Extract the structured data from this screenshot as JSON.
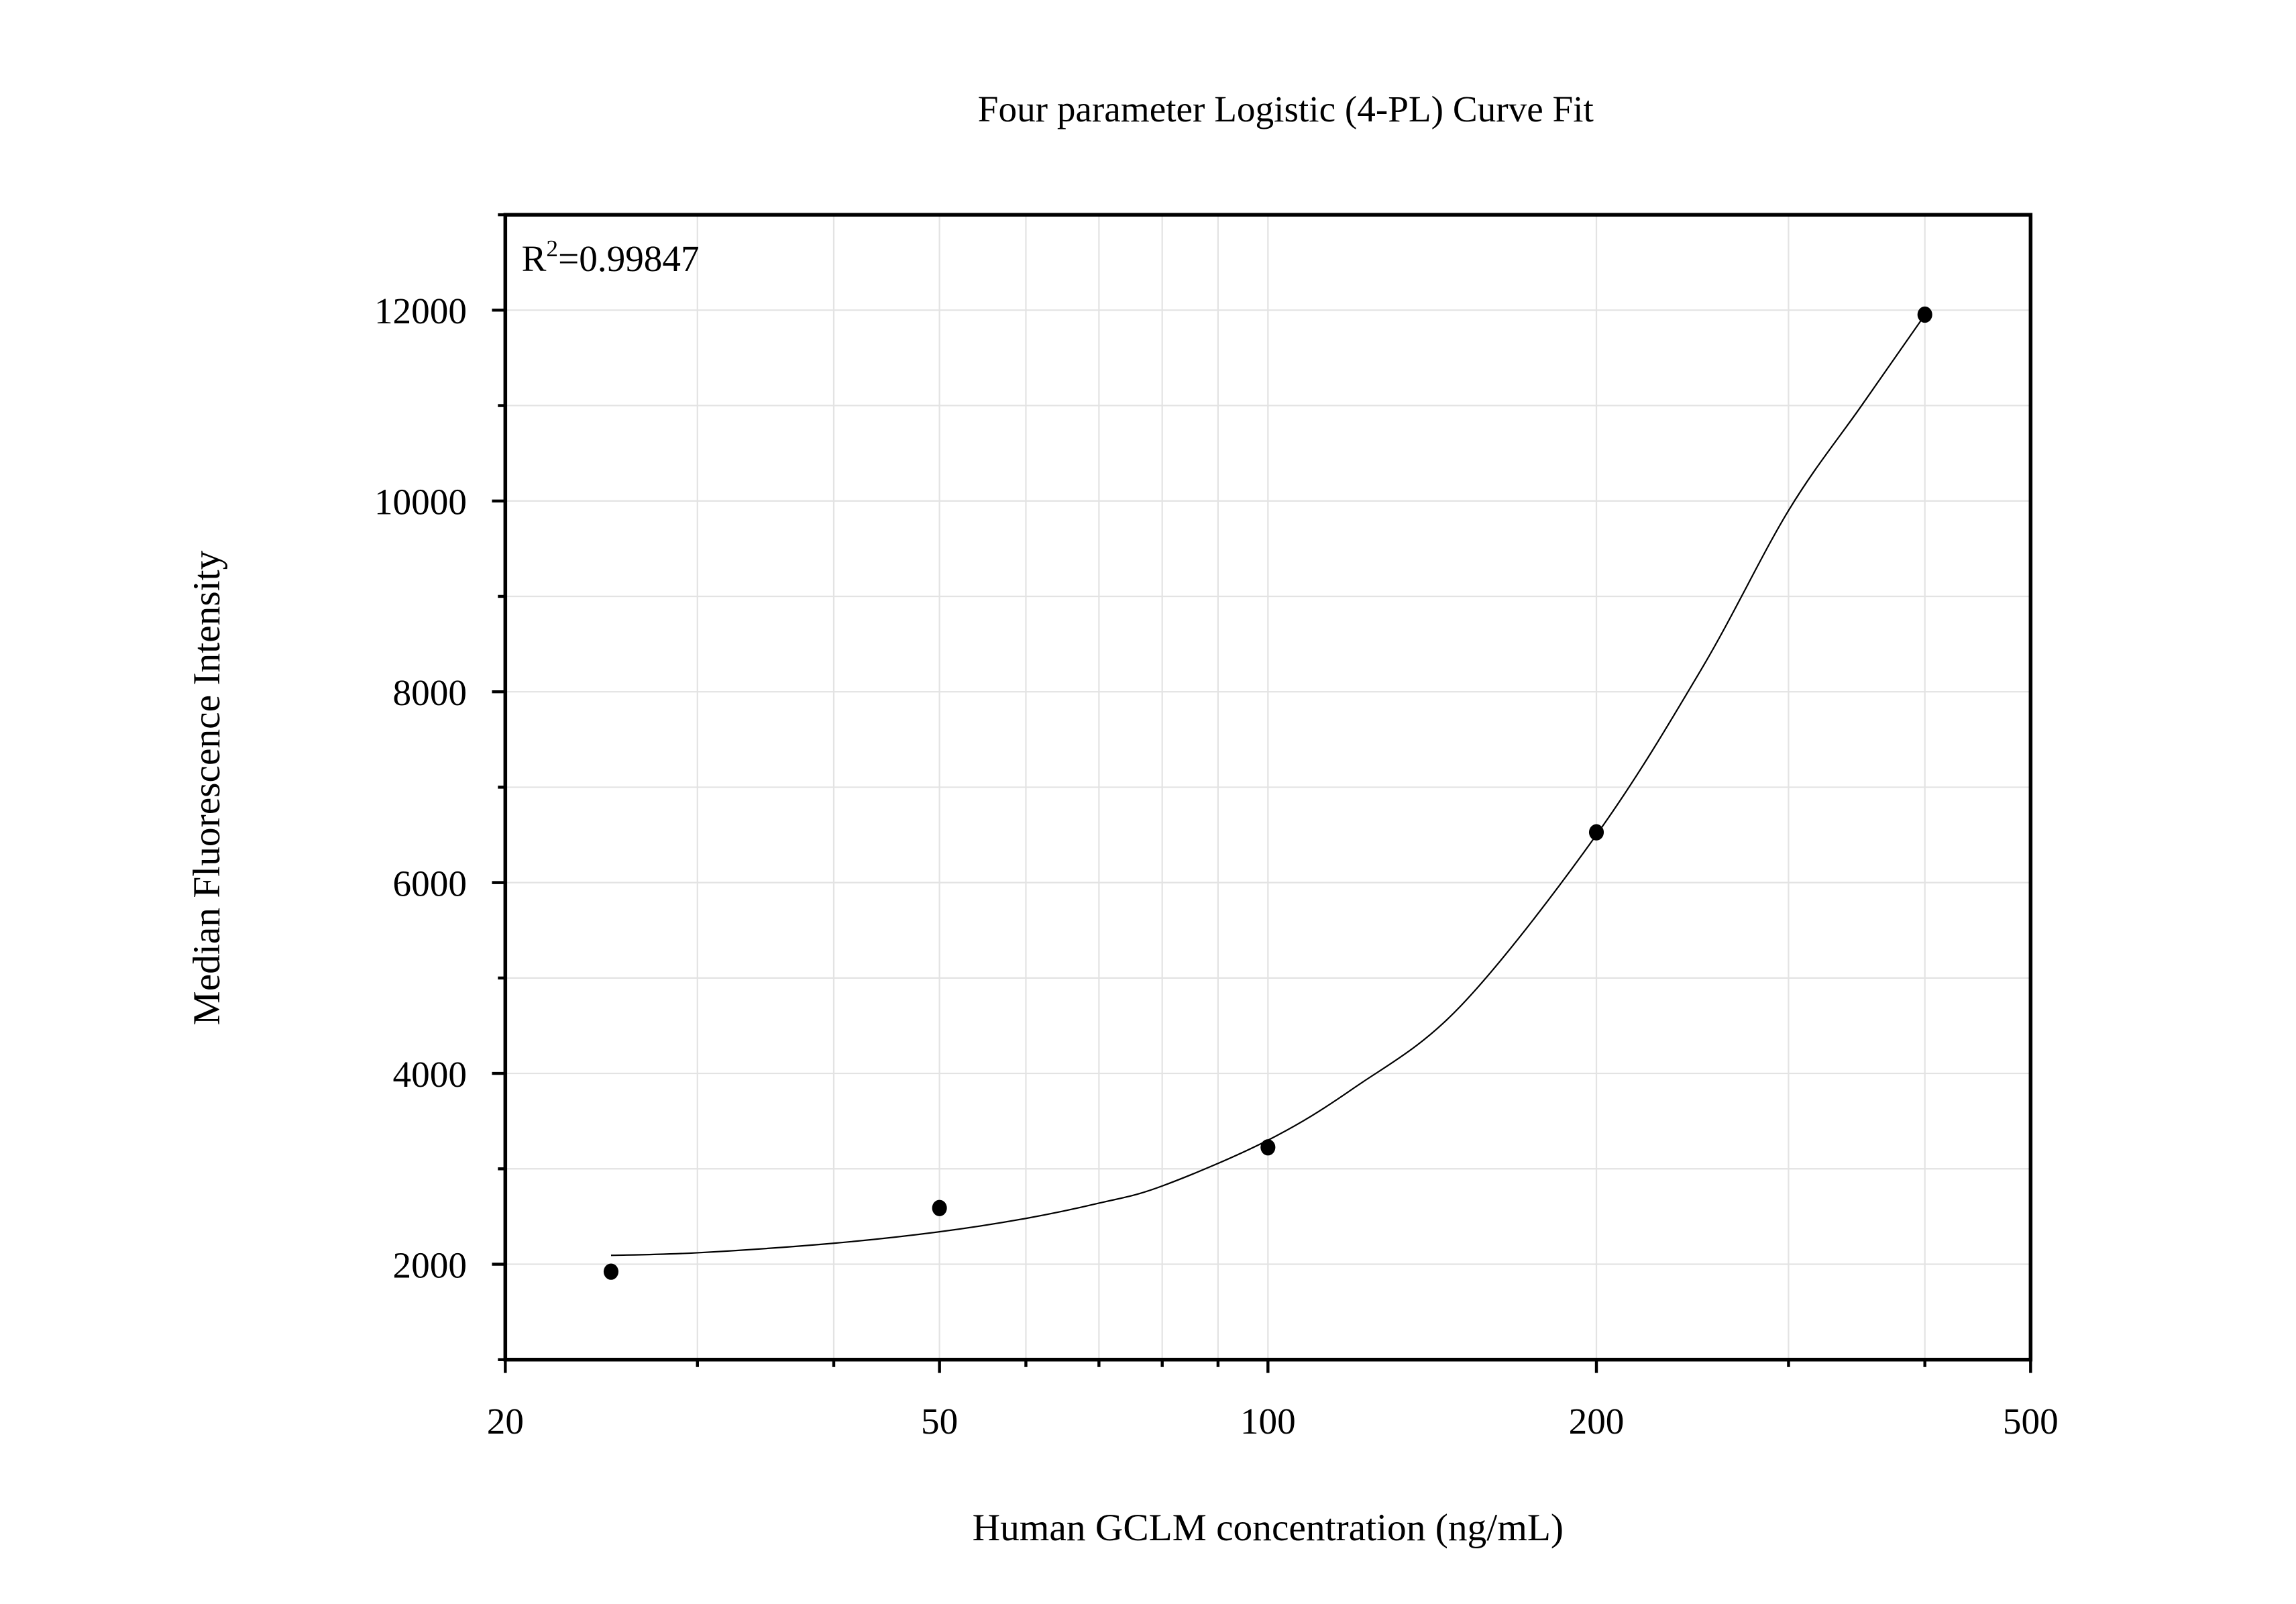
{
  "chart_data": {
    "type": "scatter",
    "title": "Four parameter Logistic (4-PL) Curve Fit",
    "xlabel": "Human GCLM concentration (ng/mL)",
    "ylabel": "Median Fluorescence Intensity",
    "annotation": {
      "prefix": "R",
      "superscript": "2",
      "value": "=0.99847"
    },
    "x_scale": "log",
    "xlim": [
      20,
      500
    ],
    "ylim": [
      1000,
      13000
    ],
    "x_ticks": [
      20,
      50,
      100,
      200,
      500
    ],
    "x_tick_labels": [
      "20",
      "50",
      "100",
      "200",
      "500"
    ],
    "x_minor_ticks": [
      30,
      40,
      60,
      70,
      80,
      90,
      300,
      400
    ],
    "y_ticks": [
      2000,
      4000,
      6000,
      8000,
      10000,
      12000
    ],
    "y_tick_labels": [
      "2000",
      "4000",
      "6000",
      "8000",
      "10000",
      "12000"
    ],
    "y_minor_ticks": [
      1000,
      3000,
      5000,
      7000,
      9000,
      11000,
      13000
    ],
    "grid": true,
    "points": {
      "x": [
        25,
        50,
        100,
        200,
        400
      ],
      "y": [
        1922,
        2589,
        3225,
        6527,
        11953
      ],
      "color": "#000000"
    },
    "fit_curve": {
      "x": [
        25,
        30,
        40,
        50,
        60,
        70,
        80,
        100,
        120,
        150,
        200,
        250,
        300,
        350,
        400
      ],
      "y": [
        2093,
        2120,
        2220,
        2340,
        2480,
        2640,
        2820,
        3300,
        3850,
        4700,
        6500,
        8250,
        9900,
        11000,
        11950
      ],
      "color": "#000000"
    }
  }
}
